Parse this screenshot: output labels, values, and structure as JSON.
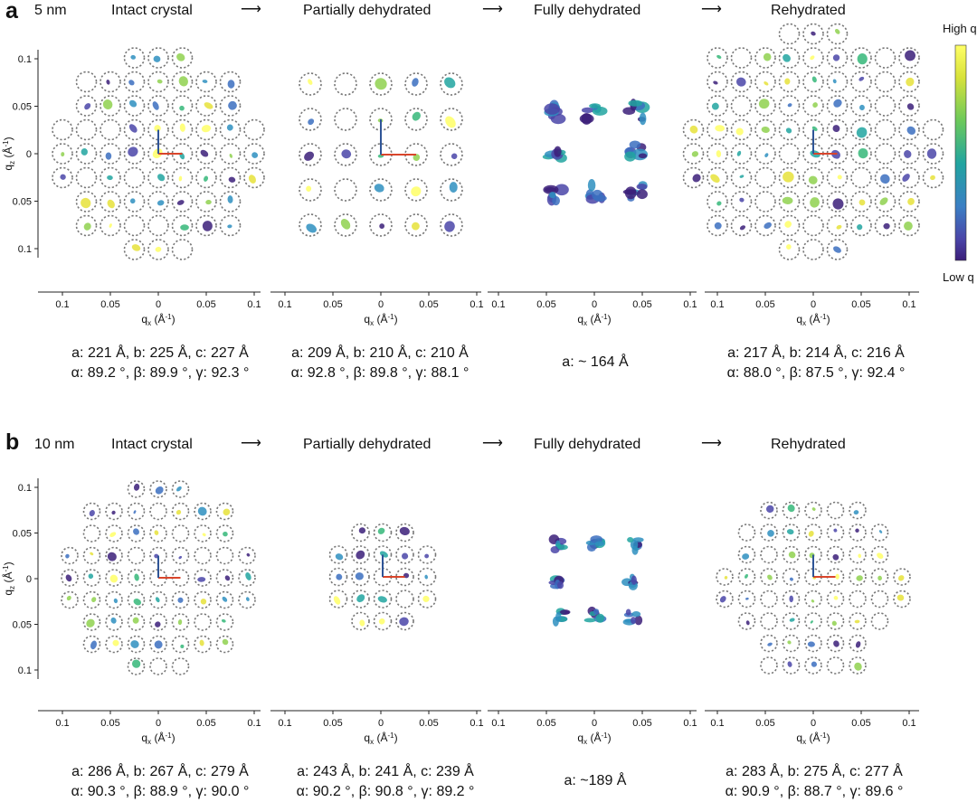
{
  "colorbar": {
    "high": "High q",
    "low": "Low q",
    "colors": [
      "#ffff66",
      "#e6e23a",
      "#8fd14f",
      "#35b779",
      "#21a4a0",
      "#2e8fbf",
      "#3b6fc0",
      "#4a45a8",
      "#3b1e79"
    ]
  },
  "arrow_glyph": "⟶",
  "qz_label": "qz (Å⁻¹)",
  "qx_label": "qx (Å⁻¹)",
  "qz_ticks": [
    "0.1",
    "0.05",
    "0",
    "0.05",
    "0.1"
  ],
  "qx_ticks_outer": [
    "0.1",
    "0.05",
    "0",
    "0.05",
    "0.1"
  ],
  "colors": {
    "red_vector": "#d9452b",
    "blue_vector": "#2f5597",
    "ring": "#777777"
  },
  "panels": [
    {
      "letter": "a",
      "size": "5 nm",
      "stages": [
        {
          "title": "Intact crystal",
          "line1": "a: 221 Å, b: 225 Å, c: 227 Å",
          "line2": "α: 89.2 °, β: 89.9 °, γ: 92.3 °"
        },
        {
          "title": "Partially dehydrated",
          "line1": "a: 209  Å, b: 210 Å, c: 210 Å",
          "line2": "α: 92.8 °, β: 89.8 °, γ: 88.1 °"
        },
        {
          "title": "Fully dehydrated",
          "line1": "a: ~ 164 Å",
          "line2": ""
        },
        {
          "title": "Rehydrated",
          "line1": "a: 217  Å, b: 214 Å, c: 216 Å",
          "line2": "α: 88.0 °, β: 87.5 °, γ: 92.4 °"
        }
      ]
    },
    {
      "letter": "b",
      "size": "10 nm",
      "stages": [
        {
          "title": "Intact crystal",
          "line1": "a: 286  Å, b: 267 Å, c: 279 Å",
          "line2": "α: 90.3 °, β: 88.9 °, γ: 90.0 °"
        },
        {
          "title": "Partially dehydrated",
          "line1": "a: 243  Å, b: 241 Å, c: 239 Å",
          "line2": "α: 90.2 °, β: 90.8 °, γ: 89.2 °"
        },
        {
          "title": "Fully dehydrated",
          "line1": "a: ~189 Å",
          "line2": ""
        },
        {
          "title": "Rehydrated",
          "line1": "a: 283  Å, b: 275 Å, c: 277 Å",
          "line2": "α: 90.9 °, β: 88.7 °, γ: 89.6 °"
        }
      ]
    }
  ]
}
